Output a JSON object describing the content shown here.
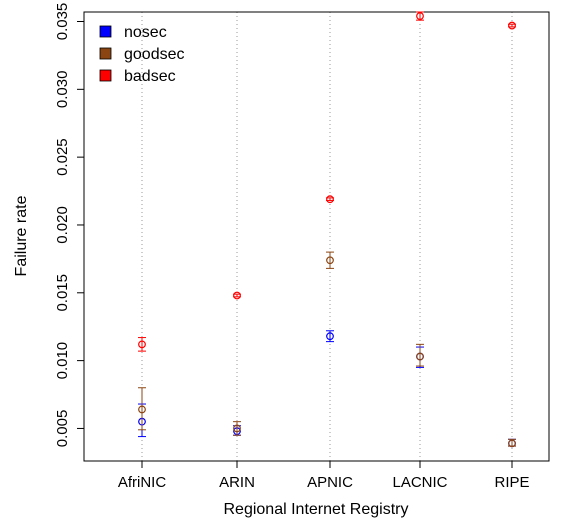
{
  "chart_data": {
    "type": "scatter",
    "title": "",
    "xlabel": "Regional Internet Registry",
    "ylabel": "Failure rate",
    "categories": [
      "AfriNIC",
      "ARIN",
      "APNIC",
      "LACNIC",
      "RIPE"
    ],
    "ylim": [
      0.0026,
      0.0357
    ],
    "yticks": [
      0.005,
      0.01,
      0.015,
      0.02,
      0.025,
      0.03,
      0.035
    ],
    "ytick_labels": [
      "0.005",
      "0.010",
      "0.015",
      "0.020",
      "0.025",
      "0.030",
      "0.035"
    ],
    "grid": "vertical dotted lines at categories",
    "legend_position": "top-left",
    "series": [
      {
        "name": "nosec",
        "color": "#0000ff",
        "values": [
          0.0055,
          0.0048,
          0.0118,
          0.0103,
          0.0039
        ],
        "err_low": [
          0.0044,
          0.0045,
          0.0114,
          0.0095,
          0.0037
        ],
        "err_high": [
          0.0068,
          0.0052,
          0.0122,
          0.011,
          0.0042
        ]
      },
      {
        "name": "goodsec",
        "color": "#8b4513",
        "values": [
          0.0064,
          0.005,
          0.0174,
          0.0103,
          0.0039
        ],
        "err_low": [
          0.0049,
          0.0045,
          0.0168,
          0.0096,
          0.0037
        ],
        "err_high": [
          0.008,
          0.0055,
          0.018,
          0.0112,
          0.0042
        ]
      },
      {
        "name": "badsec",
        "color": "#ff0000",
        "values": [
          0.0112,
          0.0148,
          0.0219,
          0.0354,
          0.0347
        ],
        "err_low": [
          0.0107,
          0.0147,
          0.0218,
          0.0351,
          0.0346
        ],
        "err_high": [
          0.0117,
          0.0149,
          0.022,
          0.0357,
          0.0348
        ]
      }
    ]
  }
}
